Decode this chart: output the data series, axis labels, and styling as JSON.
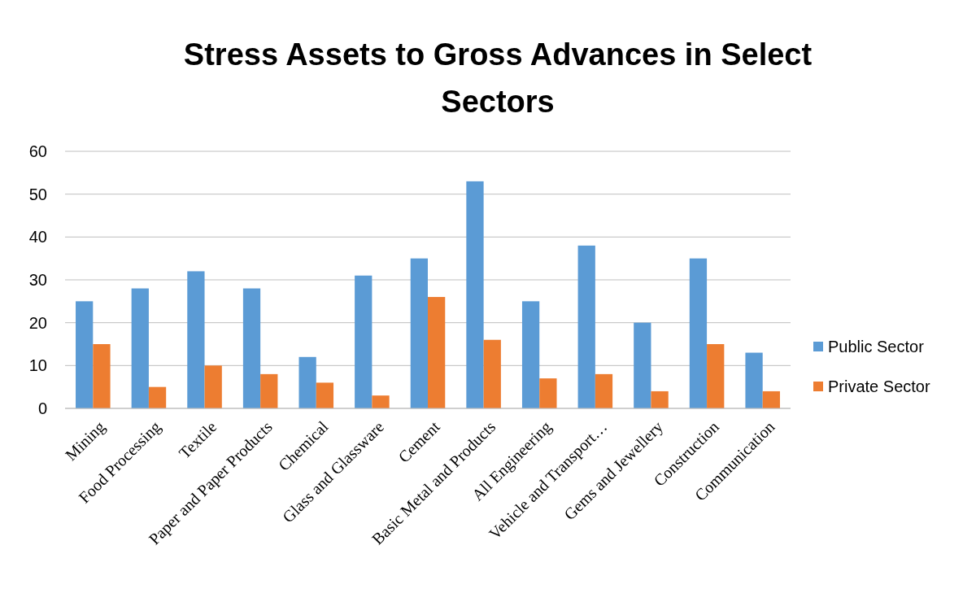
{
  "chart_data": {
    "type": "bar",
    "title": "Stress Assets to Gross Advances in Select Sectors",
    "categories": [
      "Mining",
      "Food Processing",
      "Textile",
      "Paper and Paper Products",
      "Chemical",
      "Glass and Glassware",
      "Cement",
      "Basic Metal and Products",
      "All Engineering",
      "Vehicle and Transport…",
      "Gems and Jewellery",
      "Construction",
      "Communication"
    ],
    "series": [
      {
        "name": "Public Sector",
        "color": "#5b9bd5",
        "values": [
          25,
          28,
          32,
          28,
          12,
          31,
          35,
          53,
          25,
          38,
          20,
          35,
          13
        ]
      },
      {
        "name": "Private Sector",
        "color": "#ed7d31",
        "values": [
          15,
          5,
          10,
          8,
          6,
          3,
          26,
          16,
          7,
          8,
          4,
          15,
          4
        ]
      }
    ],
    "ylim": [
      0,
      60
    ],
    "yticks": [
      0,
      10,
      20,
      30,
      40,
      50,
      60
    ],
    "grid": "y",
    "legend": "right"
  }
}
